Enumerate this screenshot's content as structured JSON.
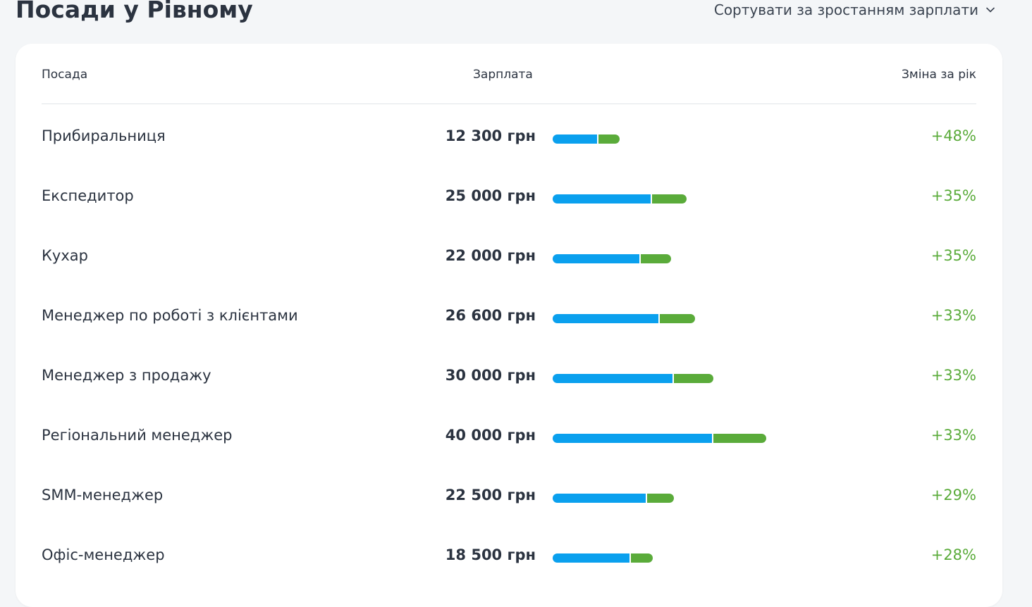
{
  "page": {
    "title": "Посади у Рівному"
  },
  "sort": {
    "label": "Сортувати за зростанням зарплати"
  },
  "table": {
    "headers": {
      "position": "Посада",
      "salary": "Зарплата",
      "change": "Зміна за рік"
    },
    "rows": [
      {
        "title": "Прибиральниця",
        "salary": "12 300 грн",
        "salary_value": 12300,
        "change": "+48%",
        "change_value": 48
      },
      {
        "title": "Експедитор",
        "salary": "25 000 грн",
        "salary_value": 25000,
        "change": "+35%",
        "change_value": 35
      },
      {
        "title": "Кухар",
        "salary": "22 000 грн",
        "salary_value": 22000,
        "change": "+35%",
        "change_value": 35
      },
      {
        "title": "Менеджер по роботі з клієнтами",
        "salary": "26 600 грн",
        "salary_value": 26600,
        "change": "+33%",
        "change_value": 33
      },
      {
        "title": "Менеджер з продажу",
        "salary": "30 000 грн",
        "salary_value": 30000,
        "change": "+33%",
        "change_value": 33
      },
      {
        "title": "Регіональний менеджер",
        "salary": "40 000 грн",
        "salary_value": 40000,
        "change": "+33%",
        "change_value": 33
      },
      {
        "title": "SMM-менеджер",
        "salary": "22 500 грн",
        "salary_value": 22500,
        "change": "+29%",
        "change_value": 29
      },
      {
        "title": "Офіс-менеджер",
        "salary": "18 500 грн",
        "salary_value": 18500,
        "change": "+28%",
        "change_value": 28
      }
    ]
  },
  "colors": {
    "base_bar": "#0aa0ee",
    "growth_bar": "#5aab3a",
    "change_text": "#5aab3a"
  },
  "icons": {
    "sort": "chevron-down-icon"
  }
}
